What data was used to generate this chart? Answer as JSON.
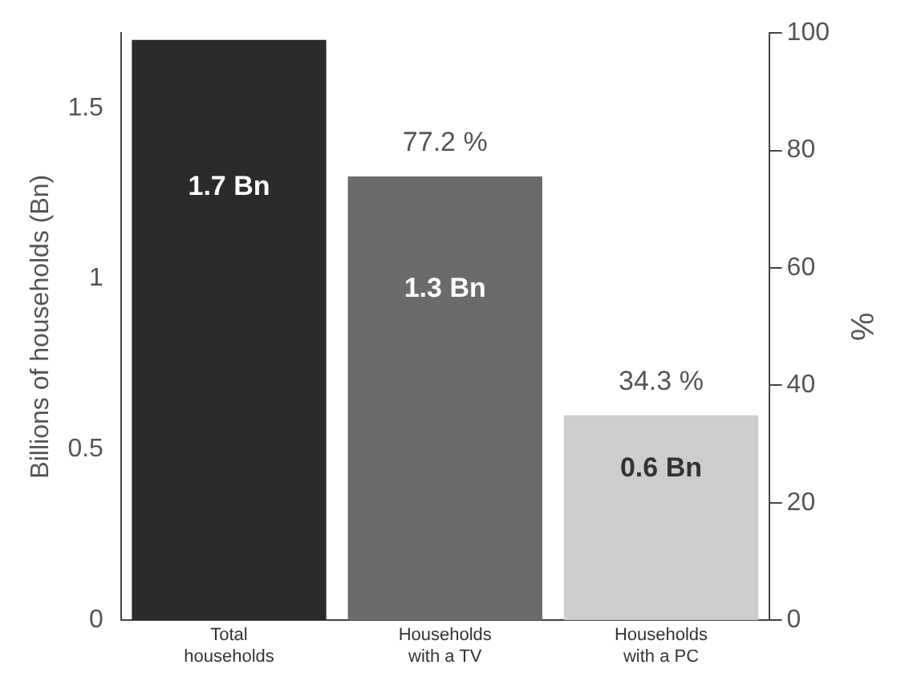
{
  "chart_data": {
    "type": "bar",
    "categories": [
      "Total households",
      "Households with a TV",
      "Households with a PC"
    ],
    "values": [
      1.7,
      1.3,
      0.6
    ],
    "colors": [
      "#2b2b2b",
      "#6b6b6b",
      "#cdcdcd"
    ],
    "value_labels": [
      "1.7 Bn",
      "1.3 Bn",
      "0.6 Bn"
    ],
    "ylabel": "Billions of households (Bn)",
    "y2label": "%",
    "ylim": [
      0,
      1.72
    ],
    "yticks": [
      0,
      0.5,
      1,
      1.5
    ],
    "y2lim": [
      0,
      100
    ],
    "y2ticks": [
      0,
      20,
      40,
      60,
      80,
      100
    ],
    "annotations": [
      {
        "text": "77.2 %",
        "x": "Households with a TV",
        "y": 1.3
      },
      {
        "text": "34.3 %",
        "x": "Households with a PC",
        "y": 0.6
      }
    ],
    "grid": false,
    "legend": false
  }
}
